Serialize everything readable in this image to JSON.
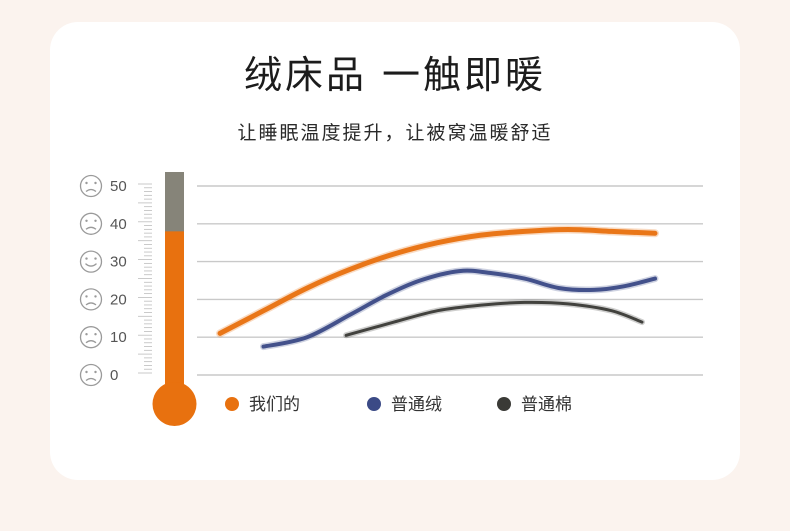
{
  "heading": {
    "title": "绒床品 一触即暖",
    "subtitle": "让睡眠温度提升，让被窝温暖舒适"
  },
  "chart_data": {
    "type": "line",
    "title": "绒床品 一触即暖",
    "subtitle": "让睡眠温度提升，让被窝温暖舒适",
    "xlabel": "",
    "ylabel": "",
    "ylim": [
      0,
      50
    ],
    "yticks": [
      0,
      10,
      20,
      30,
      40,
      50
    ],
    "thermometer_value": 38,
    "grid": true,
    "legend_position": "bottom",
    "series": [
      {
        "name": "我们的",
        "color": "#e8710f",
        "points": [
          [
            0.0,
            11
          ],
          [
            0.1,
            17
          ],
          [
            0.2,
            23
          ],
          [
            0.3,
            28
          ],
          [
            0.4,
            32
          ],
          [
            0.5,
            35
          ],
          [
            0.6,
            37
          ],
          [
            0.7,
            38
          ],
          [
            0.8,
            38.5
          ],
          [
            0.9,
            38
          ],
          [
            1.0,
            37.5
          ]
        ]
      },
      {
        "name": "普通绒",
        "color": "#3b4a86",
        "points": [
          [
            0.1,
            7.5
          ],
          [
            0.2,
            10
          ],
          [
            0.3,
            16
          ],
          [
            0.38,
            21
          ],
          [
            0.46,
            25
          ],
          [
            0.55,
            27.5
          ],
          [
            0.62,
            27
          ],
          [
            0.7,
            25.5
          ],
          [
            0.78,
            23
          ],
          [
            0.86,
            22.5
          ],
          [
            0.93,
            23.5
          ],
          [
            1.0,
            25.5
          ]
        ]
      },
      {
        "name": "普通棉",
        "color": "#3a3a36",
        "points": [
          [
            0.29,
            10.5
          ],
          [
            0.4,
            14
          ],
          [
            0.5,
            17
          ],
          [
            0.6,
            18.5
          ],
          [
            0.7,
            19.2
          ],
          [
            0.8,
            18.8
          ],
          [
            0.9,
            17
          ],
          [
            0.97,
            14
          ]
        ]
      }
    ]
  }
}
